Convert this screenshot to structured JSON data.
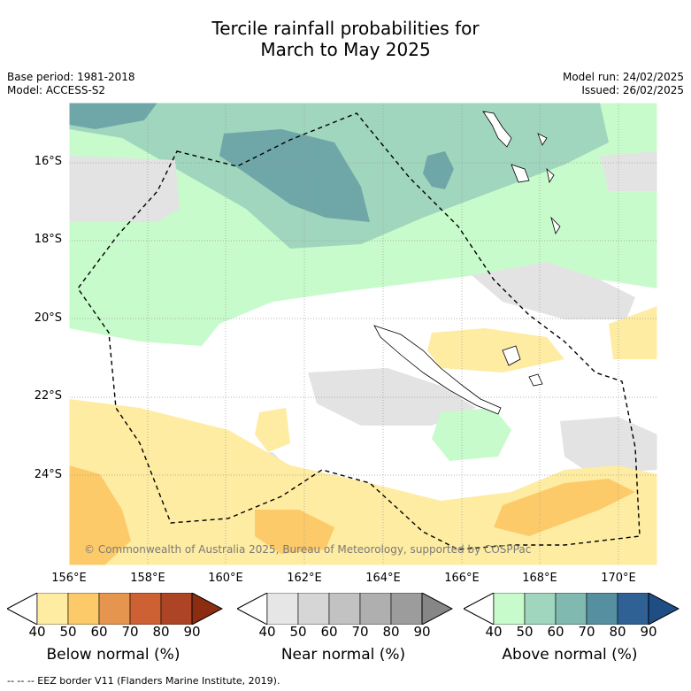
{
  "title": [
    "Tercile rainfall probabilities for",
    "March to May 2025"
  ],
  "base_period": "Base period: 1981-2018",
  "model": "Model: ACCESS-S2",
  "model_run": "Model run: 24/02/2025",
  "issued": "Issued: 26/02/2025",
  "lat_labels": [
    "16°S",
    "18°S",
    "20°S",
    "22°S",
    "24°S"
  ],
  "lon_labels": [
    "156°E",
    "158°E",
    "160°E",
    "162°E",
    "164°E",
    "166°E",
    "168°E",
    "170°E"
  ],
  "copyright": "© Commonwealth of Australia 2025, Bureau of Meteorology, supported by COSPPac",
  "colorbars": [
    {
      "title": "Below normal (%)",
      "ticks": [
        "40",
        "50",
        "60",
        "70",
        "80",
        "90"
      ],
      "colors": [
        "#ffffff",
        "#feeca2",
        "#fdca6a",
        "#e6954e",
        "#cd6134",
        "#ad4426",
        "#8c2d12"
      ]
    },
    {
      "title": "Near normal (%)",
      "ticks": [
        "40",
        "50",
        "60",
        "70",
        "80",
        "90"
      ],
      "colors": [
        "#ffffff",
        "#e6e6e6",
        "#d6d6d6",
        "#c2c2c2",
        "#afafaf",
        "#9c9c9c",
        "#868686"
      ]
    },
    {
      "title": "Above normal (%)",
      "ticks": [
        "40",
        "50",
        "60",
        "70",
        "80",
        "90"
      ],
      "colors": [
        "#ffffff",
        "#c8fbcc",
        "#a0d6bd",
        "#80b9b0",
        "#5690a0",
        "#2f6195",
        "#1f4e85"
      ]
    }
  ],
  "legend_note": "--  --  -- EEZ border V11 (Flanders Marine Institute, 2019)."
}
